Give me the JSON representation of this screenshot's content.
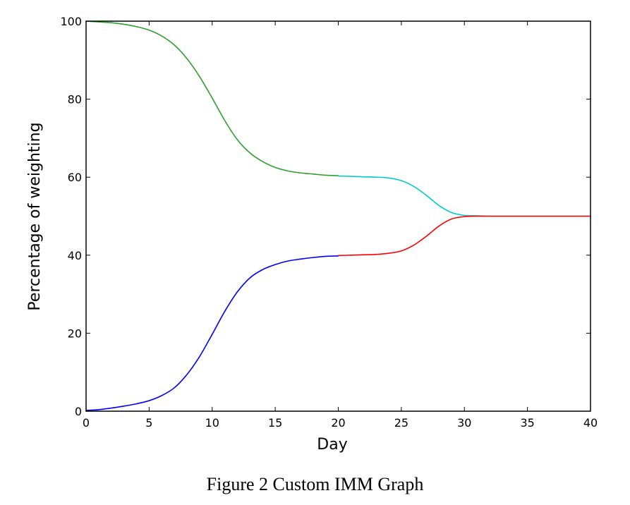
{
  "caption": "Figure 2 Custom IMM Graph",
  "chart_data": {
    "type": "line",
    "title": "",
    "xlabel": "Day",
    "ylabel": "Percentage of weighting",
    "xlim": [
      0,
      40
    ],
    "ylim": [
      0,
      100
    ],
    "xticks": [
      0,
      5,
      10,
      15,
      20,
      25,
      30,
      35,
      40
    ],
    "yticks": [
      0,
      20,
      40,
      60,
      80,
      100
    ],
    "grid": false,
    "legend": "none",
    "series": [
      {
        "color": "#2ca02c",
        "x": [
          0,
          1,
          2,
          3,
          4,
          5,
          6,
          7,
          8,
          9,
          10,
          11,
          12,
          13,
          14,
          15,
          16,
          17,
          18,
          19,
          20
        ],
        "y": [
          100,
          99.8,
          99.6,
          99.2,
          98.6,
          97.7,
          96.2,
          93.9,
          90.4,
          85.8,
          80.3,
          74.5,
          69.6,
          66.2,
          64.0,
          62.5,
          61.6,
          61.1,
          60.8,
          60.5,
          60.4
        ]
      },
      {
        "color": "#0000ff",
        "x": [
          0,
          1,
          2,
          3,
          4,
          5,
          6,
          7,
          8,
          9,
          10,
          11,
          12,
          13,
          14,
          15,
          16,
          17,
          18,
          19,
          20
        ],
        "y": [
          0.2,
          0.4,
          0.8,
          1.3,
          1.9,
          2.7,
          4.0,
          6.0,
          9.4,
          14.0,
          19.7,
          25.6,
          30.6,
          34.2,
          36.3,
          37.6,
          38.5,
          39.0,
          39.4,
          39.7,
          39.8
        ]
      },
      {
        "color": "#00cccc",
        "x": [
          20,
          21,
          22,
          23,
          24,
          25,
          26,
          27,
          28,
          29,
          30,
          31,
          32,
          35,
          40
        ],
        "y": [
          60.3,
          60.2,
          60.1,
          60.0,
          59.8,
          59.1,
          57.6,
          55.3,
          52.7,
          50.9,
          50.2,
          50.1,
          50.0,
          50.0,
          50.0
        ]
      },
      {
        "color": "#ff0000",
        "x": [
          20,
          21,
          22,
          23,
          24,
          25,
          26,
          27,
          28,
          29,
          30,
          31,
          32,
          35,
          40
        ],
        "y": [
          39.9,
          40.0,
          40.1,
          40.2,
          40.5,
          41.1,
          42.6,
          44.9,
          47.5,
          49.3,
          49.9,
          50.0,
          50.0,
          50.0,
          50.0
        ]
      }
    ]
  }
}
